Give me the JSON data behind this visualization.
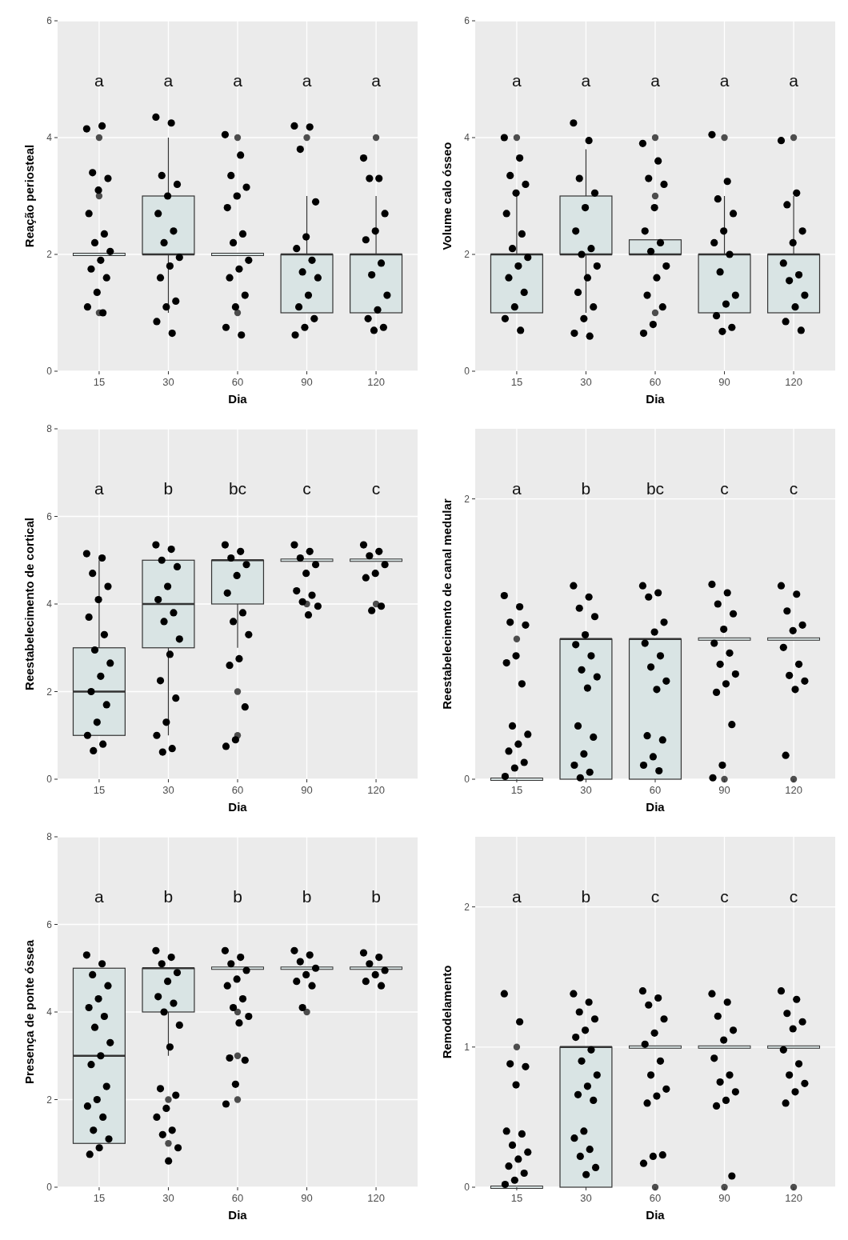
{
  "chart_data": [
    {
      "type": "box",
      "xlabel": "Dia",
      "ylabel": "Reação periosteal",
      "categories": [
        "15",
        "30",
        "60",
        "90",
        "120"
      ],
      "ylim": [
        0,
        6
      ],
      "yticks": [
        0,
        2,
        4,
        6
      ],
      "grid": true,
      "marker": "circle",
      "annotations": [
        "a",
        "a",
        "a",
        "a",
        "a"
      ],
      "series": [
        {
          "type": "box",
          "color": "#d9e4e4",
          "boxes": [
            {
              "low": 2,
              "q1": 2,
              "median": 2,
              "q3": 2,
              "high": 2,
              "outliers": [
                1,
                3,
                4
              ]
            },
            {
              "low": 1,
              "q1": 2,
              "median": 2,
              "q3": 3,
              "high": 4
            },
            {
              "low": 2,
              "q1": 2,
              "median": 2,
              "q3": 2,
              "high": 2,
              "outliers": [
                1,
                3,
                4
              ]
            },
            {
              "low": 1,
              "q1": 1,
              "median": 2,
              "q3": 2,
              "high": 3,
              "outliers": [
                4
              ]
            },
            {
              "low": 1,
              "q1": 1,
              "median": 2,
              "q3": 2,
              "high": 3,
              "outliers": [
                4
              ]
            }
          ]
        },
        {
          "type": "scatter",
          "color": "#000000",
          "x": [
            "15",
            "15",
            "15",
            "15",
            "15",
            "15",
            "15",
            "15",
            "15",
            "15",
            "15",
            "15",
            "15",
            "15",
            "15",
            "30",
            "30",
            "30",
            "30",
            "30",
            "30",
            "30",
            "30",
            "30",
            "30",
            "30",
            "30",
            "30",
            "30",
            "30",
            "60",
            "60",
            "60",
            "60",
            "60",
            "60",
            "60",
            "60",
            "60",
            "60",
            "60",
            "60",
            "60",
            "60",
            "60",
            "90",
            "90",
            "90",
            "90",
            "90",
            "90",
            "90",
            "90",
            "90",
            "90",
            "90",
            "90",
            "90",
            "90",
            "120",
            "120",
            "120",
            "120",
            "120",
            "120",
            "120",
            "120",
            "120",
            "120",
            "120",
            "120",
            "120"
          ],
          "values": [
            4.15,
            4.2,
            3.4,
            3.3,
            3.1,
            2.7,
            2.35,
            2.2,
            2.05,
            1.9,
            1.75,
            1.6,
            1.35,
            1.1,
            1,
            4.35,
            4.25,
            3.35,
            3.2,
            3,
            2.7,
            2.4,
            2.2,
            1.95,
            1.8,
            1.6,
            1.2,
            1.1,
            0.85,
            0.65,
            4.05,
            3.7,
            3.35,
            3.15,
            3,
            2.8,
            2.35,
            2.2,
            1.9,
            1.75,
            1.6,
            1.3,
            1.1,
            0.75,
            0.62,
            4.2,
            4.18,
            3.8,
            2.9,
            2.3,
            2.1,
            1.9,
            1.7,
            1.6,
            1.3,
            1.1,
            0.9,
            0.75,
            0.62,
            3.65,
            3.3,
            3.3,
            2.7,
            2.4,
            2.25,
            1.85,
            1.65,
            1.3,
            1.05,
            0.9,
            0.75,
            0.7
          ]
        }
      ]
    },
    {
      "type": "box",
      "xlabel": "Dia",
      "ylabel": "Volume calo ósseo",
      "categories": [
        "15",
        "30",
        "60",
        "90",
        "120"
      ],
      "ylim": [
        0,
        6
      ],
      "yticks": [
        0,
        2,
        4,
        6
      ],
      "grid": true,
      "marker": "circle",
      "annotations": [
        "a",
        "a",
        "a",
        "a",
        "a"
      ],
      "series": [
        {
          "type": "box",
          "color": "#d9e4e4",
          "boxes": [
            {
              "low": 1,
              "q1": 1,
              "median": 2,
              "q3": 2,
              "high": 3,
              "outliers": [
                4
              ]
            },
            {
              "low": 1,
              "q1": 2,
              "median": 2,
              "q3": 3,
              "high": 3.8
            },
            {
              "low": 2,
              "q1": 2,
              "median": 2,
              "q3": 2.25,
              "high": 2.25,
              "outliers": [
                1,
                3,
                4
              ]
            },
            {
              "low": 1,
              "q1": 1,
              "median": 2,
              "q3": 2,
              "high": 3,
              "outliers": [
                4
              ]
            },
            {
              "low": 1,
              "q1": 1,
              "median": 2,
              "q3": 2,
              "high": 3,
              "outliers": [
                4
              ]
            }
          ]
        },
        {
          "type": "scatter",
          "color": "#000000",
          "x": [
            "15",
            "15",
            "15",
            "15",
            "15",
            "15",
            "15",
            "15",
            "15",
            "15",
            "15",
            "15",
            "15",
            "15",
            "15",
            "30",
            "30",
            "30",
            "30",
            "30",
            "30",
            "30",
            "30",
            "30",
            "30",
            "30",
            "30",
            "30",
            "30",
            "30",
            "60",
            "60",
            "60",
            "60",
            "60",
            "60",
            "60",
            "60",
            "60",
            "60",
            "60",
            "60",
            "60",
            "60",
            "90",
            "90",
            "90",
            "90",
            "90",
            "90",
            "90",
            "90",
            "90",
            "90",
            "90",
            "90",
            "90",
            "120",
            "120",
            "120",
            "120",
            "120",
            "120",
            "120",
            "120",
            "120",
            "120",
            "120",
            "120"
          ],
          "values": [
            4,
            3.65,
            3.35,
            3.2,
            3.05,
            2.7,
            2.35,
            2.1,
            1.95,
            1.8,
            1.6,
            1.35,
            1.1,
            0.9,
            0.7,
            4.25,
            3.95,
            3.3,
            3.05,
            2.8,
            2.4,
            2.1,
            2,
            1.8,
            1.6,
            1.35,
            1.1,
            0.9,
            0.65,
            0.6,
            3.9,
            3.6,
            3.3,
            3.2,
            2.8,
            2.4,
            2.2,
            2.05,
            1.8,
            1.6,
            1.3,
            1.1,
            0.8,
            0.65,
            4.05,
            3.25,
            2.95,
            2.7,
            2.4,
            2.2,
            2,
            1.7,
            1.3,
            1.15,
            0.95,
            0.75,
            0.68,
            3.95,
            3.05,
            2.85,
            2.4,
            2.2,
            1.85,
            1.65,
            1.55,
            1.3,
            1.1,
            0.85,
            0.7
          ]
        }
      ]
    },
    {
      "type": "box",
      "xlabel": "Dia",
      "ylabel": "Reestabelecimento de cortical",
      "categories": [
        "15",
        "30",
        "60",
        "90",
        "120"
      ],
      "ylim": [
        0,
        8
      ],
      "yticks": [
        0,
        2,
        4,
        6,
        8
      ],
      "grid": true,
      "marker": "circle",
      "annotations": [
        "a",
        "b",
        "bc",
        "c",
        "c"
      ],
      "series": [
        {
          "type": "box",
          "color": "#d9e4e4",
          "boxes": [
            {
              "low": 1,
              "q1": 1,
              "median": 2,
              "q3": 3,
              "high": 5
            },
            {
              "low": 1,
              "q1": 3,
              "median": 4,
              "q3": 5,
              "high": 5
            },
            {
              "low": 3,
              "q1": 4,
              "median": 5,
              "q3": 5,
              "high": 5,
              "outliers": [
                1,
                2
              ]
            },
            {
              "low": 5,
              "q1": 5,
              "median": 5,
              "q3": 5,
              "high": 5,
              "outliers": [
                4
              ]
            },
            {
              "low": 5,
              "q1": 5,
              "median": 5,
              "q3": 5,
              "high": 5,
              "outliers": [
                4
              ]
            }
          ]
        },
        {
          "type": "scatter",
          "color": "#000000",
          "x": [
            "15",
            "15",
            "15",
            "15",
            "15",
            "15",
            "15",
            "15",
            "15",
            "15",
            "15",
            "15",
            "15",
            "15",
            "15",
            "15",
            "30",
            "30",
            "30",
            "30",
            "30",
            "30",
            "30",
            "30",
            "30",
            "30",
            "30",
            "30",
            "30",
            "30",
            "30",
            "30",
            "60",
            "60",
            "60",
            "60",
            "60",
            "60",
            "60",
            "60",
            "60",
            "60",
            "60",
            "60",
            "60",
            "60",
            "90",
            "90",
            "90",
            "90",
            "90",
            "90",
            "90",
            "90",
            "90",
            "90",
            "120",
            "120",
            "120",
            "120",
            "120",
            "120",
            "120",
            "120"
          ],
          "values": [
            5.15,
            5.05,
            4.7,
            4.4,
            4.1,
            3.7,
            3.3,
            2.95,
            2.65,
            2.35,
            2,
            1.7,
            1.3,
            1,
            0.8,
            0.65,
            5.35,
            5.25,
            5,
            4.85,
            4.4,
            4.1,
            3.8,
            3.6,
            3.2,
            2.85,
            2.25,
            1.85,
            1.3,
            1,
            0.7,
            0.62,
            5.35,
            5.2,
            5.05,
            4.9,
            4.65,
            4.25,
            3.8,
            3.6,
            3.3,
            2.75,
            2.6,
            1.65,
            0.9,
            0.75,
            5.35,
            5.2,
            5.05,
            4.9,
            4.7,
            4.3,
            4.2,
            4.05,
            3.95,
            3.75,
            5.35,
            5.2,
            5.1,
            4.9,
            4.7,
            4.6,
            3.95,
            3.85
          ]
        }
      ]
    },
    {
      "type": "box",
      "xlabel": "Dia",
      "ylabel": "Reestabelecimento de canal medular",
      "categories": [
        "15",
        "30",
        "60",
        "90",
        "120"
      ],
      "ylim": [
        0,
        2.5
      ],
      "yticks": [
        0,
        2
      ],
      "grid": true,
      "marker": "circle",
      "annotations": [
        "a",
        "b",
        "bc",
        "c",
        "c"
      ],
      "series": [
        {
          "type": "box",
          "color": "#d9e4e4",
          "boxes": [
            {
              "low": 0,
              "q1": 0,
              "median": 0,
              "q3": 0,
              "high": 0,
              "outliers": [
                1
              ]
            },
            {
              "low": 0,
              "q1": 0,
              "median": 1,
              "q3": 1,
              "high": 1
            },
            {
              "low": 0,
              "q1": 0,
              "median": 1,
              "q3": 1,
              "high": 1
            },
            {
              "low": 1,
              "q1": 1,
              "median": 1,
              "q3": 1,
              "high": 1,
              "outliers": [
                0
              ]
            },
            {
              "low": 1,
              "q1": 1,
              "median": 1,
              "q3": 1,
              "high": 1,
              "outliers": [
                0
              ]
            }
          ]
        },
        {
          "type": "scatter",
          "color": "#000000",
          "x": [
            "15",
            "15",
            "15",
            "15",
            "15",
            "15",
            "15",
            "15",
            "15",
            "15",
            "15",
            "15",
            "15",
            "15",
            "30",
            "30",
            "30",
            "30",
            "30",
            "30",
            "30",
            "30",
            "30",
            "30",
            "30",
            "30",
            "30",
            "30",
            "30",
            "30",
            "60",
            "60",
            "60",
            "60",
            "60",
            "60",
            "60",
            "60",
            "60",
            "60",
            "60",
            "60",
            "60",
            "60",
            "60",
            "90",
            "90",
            "90",
            "90",
            "90",
            "90",
            "90",
            "90",
            "90",
            "90",
            "90",
            "90",
            "90",
            "90",
            "120",
            "120",
            "120",
            "120",
            "120",
            "120",
            "120",
            "120",
            "120",
            "120",
            "120"
          ],
          "values": [
            1.31,
            1.23,
            1.12,
            1.1,
            0.88,
            0.83,
            0.68,
            0.38,
            0.32,
            0.25,
            0.2,
            0.12,
            0.08,
            0.02,
            1.38,
            1.3,
            1.22,
            1.16,
            1.03,
            0.96,
            0.88,
            0.78,
            0.73,
            0.65,
            0.38,
            0.3,
            0.18,
            0.1,
            0.05,
            0.01,
            1.38,
            1.33,
            1.3,
            1.12,
            1.05,
            0.97,
            0.88,
            0.8,
            0.7,
            0.64,
            0.31,
            0.28,
            0.16,
            0.1,
            0.06,
            1.39,
            1.33,
            1.25,
            1.18,
            1.07,
            0.97,
            0.9,
            0.82,
            0.75,
            0.68,
            0.62,
            0.39,
            0.1,
            0.01,
            1.38,
            1.32,
            1.2,
            1.1,
            1.06,
            0.94,
            0.82,
            0.74,
            0.7,
            0.64,
            0.17
          ]
        }
      ]
    },
    {
      "type": "box",
      "xlabel": "Dia",
      "ylabel": "Presença de ponte óssea",
      "categories": [
        "15",
        "30",
        "60",
        "90",
        "120"
      ],
      "ylim": [
        0,
        8
      ],
      "yticks": [
        0,
        2,
        4,
        6,
        8
      ],
      "grid": true,
      "marker": "circle",
      "annotations": [
        "a",
        "b",
        "b",
        "b",
        "b"
      ],
      "series": [
        {
          "type": "box",
          "color": "#d9e4e4",
          "boxes": [
            {
              "low": 1,
              "q1": 1,
              "median": 3,
              "q3": 5,
              "high": 5
            },
            {
              "low": 3,
              "q1": 4,
              "median": 5,
              "q3": 5,
              "high": 5,
              "outliers": [
                1,
                2
              ]
            },
            {
              "low": 5,
              "q1": 5,
              "median": 5,
              "q3": 5,
              "high": 5,
              "outliers": [
                2,
                3,
                4
              ]
            },
            {
              "low": 5,
              "q1": 5,
              "median": 5,
              "q3": 5,
              "high": 5,
              "outliers": [
                4
              ]
            },
            {
              "low": 5,
              "q1": 5,
              "median": 5,
              "q3": 5,
              "high": 5
            }
          ]
        },
        {
          "type": "scatter",
          "color": "#000000",
          "x": [
            "15",
            "15",
            "15",
            "15",
            "15",
            "15",
            "15",
            "15",
            "15",
            "15",
            "15",
            "15",
            "15",
            "15",
            "15",
            "15",
            "15",
            "15",
            "15",
            "30",
            "30",
            "30",
            "30",
            "30",
            "30",
            "30",
            "30",
            "30",
            "30",
            "30",
            "30",
            "30",
            "30",
            "30",
            "30",
            "30",
            "30",
            "60",
            "60",
            "60",
            "60",
            "60",
            "60",
            "60",
            "60",
            "60",
            "60",
            "60",
            "60",
            "60",
            "60",
            "90",
            "90",
            "90",
            "90",
            "90",
            "90",
            "90",
            "90",
            "120",
            "120",
            "120",
            "120",
            "120",
            "120",
            "120"
          ],
          "values": [
            5.3,
            5.1,
            4.85,
            4.6,
            4.3,
            4.1,
            3.9,
            3.65,
            3.3,
            3,
            2.8,
            2.3,
            2,
            1.85,
            1.6,
            1.3,
            1.1,
            0.9,
            0.75,
            5.4,
            5.25,
            5.1,
            4.9,
            4.7,
            4.35,
            4.2,
            4,
            3.7,
            3.2,
            2.25,
            2.1,
            1.8,
            1.6,
            1.3,
            1.2,
            0.9,
            0.6,
            5.4,
            5.25,
            5.1,
            4.95,
            4.75,
            4.6,
            4.3,
            4.1,
            3.9,
            3.75,
            2.95,
            2.9,
            2.35,
            1.9,
            5.4,
            5.3,
            5.15,
            5,
            4.85,
            4.7,
            4.6,
            4.1,
            5.35,
            5.25,
            5.1,
            4.95,
            4.85,
            4.7,
            4.6
          ]
        }
      ]
    },
    {
      "type": "box",
      "xlabel": "Dia",
      "ylabel": "Remodelamento",
      "categories": [
        "15",
        "30",
        "60",
        "90",
        "120"
      ],
      "ylim": [
        0,
        2.5
      ],
      "yticks": [
        0,
        1,
        2
      ],
      "grid": true,
      "marker": "circle",
      "annotations": [
        "a",
        "b",
        "c",
        "c",
        "c"
      ],
      "series": [
        {
          "type": "box",
          "color": "#d9e4e4",
          "boxes": [
            {
              "low": 0,
              "q1": 0,
              "median": 0,
              "q3": 0,
              "high": 0,
              "outliers": [
                1
              ]
            },
            {
              "low": 0,
              "q1": 0,
              "median": 1,
              "q3": 1,
              "high": 1
            },
            {
              "low": 1,
              "q1": 1,
              "median": 1,
              "q3": 1,
              "high": 1,
              "outliers": [
                0
              ]
            },
            {
              "low": 1,
              "q1": 1,
              "median": 1,
              "q3": 1,
              "high": 1,
              "outliers": [
                0
              ]
            },
            {
              "low": 1,
              "q1": 1,
              "median": 1,
              "q3": 1,
              "high": 1,
              "outliers": [
                0
              ]
            }
          ]
        },
        {
          "type": "scatter",
          "color": "#000000",
          "x": [
            "15",
            "15",
            "15",
            "15",
            "15",
            "15",
            "15",
            "15",
            "15",
            "15",
            "15",
            "15",
            "15",
            "15",
            "30",
            "30",
            "30",
            "30",
            "30",
            "30",
            "30",
            "30",
            "30",
            "30",
            "30",
            "30",
            "30",
            "30",
            "30",
            "30",
            "30",
            "30",
            "60",
            "60",
            "60",
            "60",
            "60",
            "60",
            "60",
            "60",
            "60",
            "60",
            "60",
            "60",
            "60",
            "60",
            "90",
            "90",
            "90",
            "90",
            "90",
            "90",
            "90",
            "90",
            "90",
            "90",
            "90",
            "90",
            "120",
            "120",
            "120",
            "120",
            "120",
            "120",
            "120",
            "120",
            "120",
            "120",
            "120"
          ],
          "values": [
            1.38,
            1.18,
            0.88,
            0.86,
            0.73,
            0.4,
            0.38,
            0.3,
            0.25,
            0.2,
            0.15,
            0.1,
            0.05,
            0.02,
            1.38,
            1.32,
            1.25,
            1.2,
            1.12,
            1.07,
            0.98,
            0.9,
            0.8,
            0.72,
            0.66,
            0.62,
            0.4,
            0.35,
            0.27,
            0.22,
            0.14,
            0.09,
            1.4,
            1.35,
            1.3,
            1.2,
            1.1,
            1.02,
            0.9,
            0.8,
            0.7,
            0.65,
            0.6,
            0.23,
            0.22,
            0.17,
            1.38,
            1.32,
            1.22,
            1.12,
            1.05,
            0.92,
            0.8,
            0.75,
            0.68,
            0.62,
            0.58,
            0.08,
            1.4,
            1.34,
            1.24,
            1.18,
            1.13,
            0.98,
            0.88,
            0.8,
            0.74,
            0.68,
            0.6
          ]
        }
      ]
    }
  ]
}
